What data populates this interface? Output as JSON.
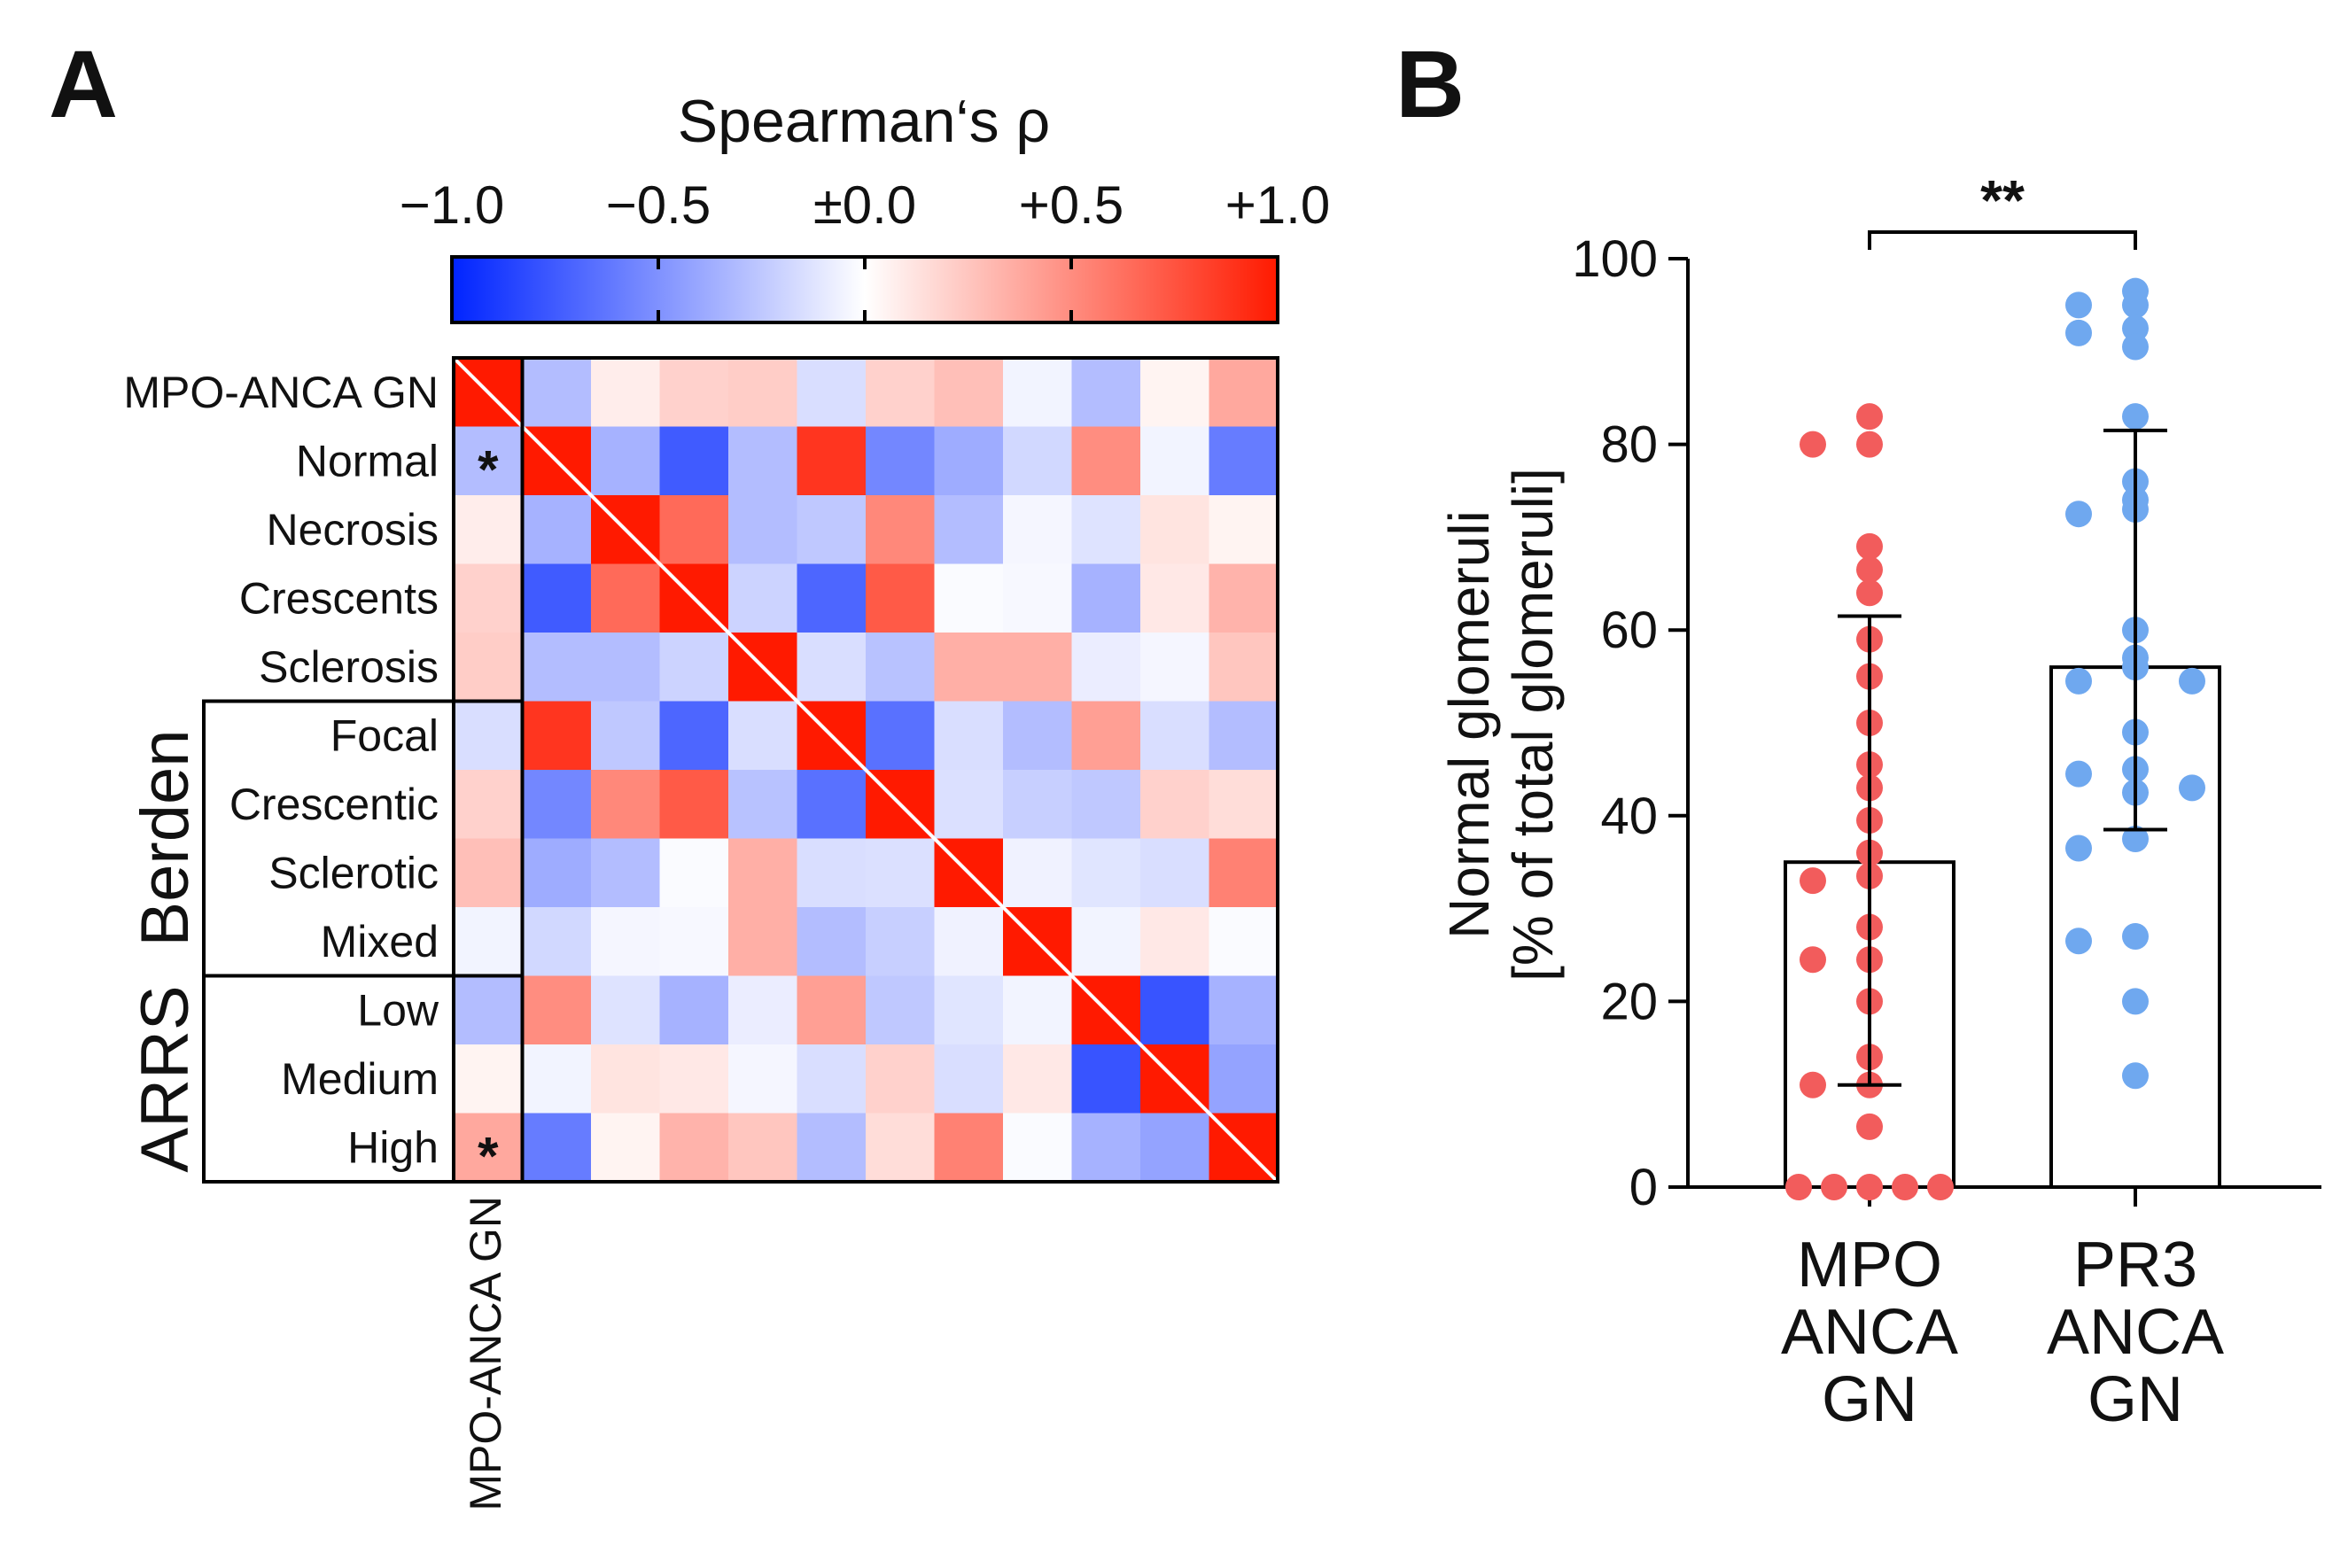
{
  "chart_data": [
    {
      "panel": "A",
      "type": "heatmap",
      "colorbar": {
        "title": "Spearman‘s ρ",
        "ticks": [
          "−1.0",
          "−0.5",
          "±0.0",
          "+0.5",
          "+1.0"
        ],
        "range": [
          -1.0,
          1.0
        ],
        "low_color": "#0024ff",
        "mid_color": "#ffffff",
        "high_color": "#ff1a00"
      },
      "row_labels": [
        "MPO-ANCA GN",
        "Normal",
        "Necrosis",
        "Crescents",
        "Sclerosis",
        "Focal",
        "Crescentic",
        "Sclerotic",
        "Mixed",
        "Low",
        "Medium",
        "High"
      ],
      "column_label": "MPO-ANCA GN",
      "groups": [
        {
          "name": "Berden",
          "rows": [
            "Focal",
            "Crescentic",
            "Sclerotic",
            "Mixed"
          ]
        },
        {
          "name": "ARRS",
          "rows": [
            "Low",
            "Medium",
            "High"
          ]
        }
      ],
      "significance_marks": [
        {
          "row": "Normal",
          "column": "MPO-ANCA GN",
          "text": "*"
        },
        {
          "row": "High",
          "column": "MPO-ANCA GN",
          "text": "*"
        }
      ],
      "values": [
        [
          1.0,
          -0.3,
          0.08,
          0.2,
          0.22,
          -0.15,
          0.2,
          0.28,
          -0.05,
          -0.3,
          0.05,
          0.38
        ],
        [
          -0.3,
          1.0,
          -0.35,
          -0.75,
          -0.3,
          0.88,
          -0.55,
          -0.38,
          -0.18,
          0.5,
          -0.05,
          -0.6
        ],
        [
          0.08,
          -0.35,
          1.0,
          0.65,
          -0.3,
          -0.25,
          0.52,
          -0.3,
          -0.04,
          -0.13,
          0.12,
          0.05
        ],
        [
          0.2,
          -0.75,
          0.65,
          1.0,
          -0.2,
          -0.7,
          0.72,
          -0.02,
          -0.03,
          -0.35,
          0.1,
          0.33
        ],
        [
          0.22,
          -0.3,
          -0.3,
          -0.2,
          1.0,
          -0.15,
          -0.28,
          0.35,
          0.35,
          -0.08,
          -0.04,
          0.25
        ],
        [
          -0.15,
          0.88,
          -0.25,
          -0.7,
          -0.15,
          1.0,
          -0.65,
          -0.15,
          -0.3,
          0.42,
          -0.15,
          -0.3
        ],
        [
          0.2,
          -0.55,
          0.52,
          0.72,
          -0.28,
          -0.65,
          1.0,
          -0.14,
          -0.22,
          -0.25,
          0.2,
          0.15
        ],
        [
          0.28,
          -0.38,
          -0.3,
          -0.02,
          0.35,
          -0.15,
          -0.14,
          1.0,
          -0.06,
          -0.12,
          -0.15,
          0.55
        ],
        [
          -0.05,
          -0.18,
          -0.04,
          -0.03,
          0.35,
          -0.3,
          -0.22,
          -0.06,
          1.0,
          -0.05,
          0.1,
          -0.02
        ],
        [
          -0.3,
          0.5,
          -0.13,
          -0.35,
          -0.08,
          0.42,
          -0.25,
          -0.12,
          -0.05,
          1.0,
          -0.78,
          -0.35
        ],
        [
          0.05,
          -0.05,
          0.12,
          0.1,
          -0.04,
          -0.15,
          0.2,
          -0.15,
          0.1,
          -0.78,
          1.0,
          -0.42
        ],
        [
          0.38,
          -0.6,
          0.05,
          0.33,
          0.25,
          -0.3,
          0.15,
          0.55,
          -0.02,
          -0.35,
          -0.42,
          1.0
        ]
      ]
    },
    {
      "panel": "B",
      "type": "bar",
      "categories": [
        "MPO ANCA GN",
        "PR3 ANCA GN"
      ],
      "category_lines": [
        [
          "MPO",
          "ANCA",
          "GN"
        ],
        [
          "PR3",
          "ANCA",
          "GN"
        ]
      ],
      "ylabel_lines": [
        "Normal glomeruli",
        "[% of total glomeruli]"
      ],
      "ylim": [
        0,
        100
      ],
      "yticks": [
        "0",
        "20",
        "40",
        "60",
        "80",
        "100"
      ],
      "bar_values": [
        35,
        56
      ],
      "error_bars": [
        [
          11,
          61.5
        ],
        [
          38.5,
          81.5
        ]
      ],
      "significance": "**",
      "series_colors": [
        "#f25c5c",
        "#6fa8ef"
      ],
      "points": [
        {
          "group": 0,
          "values": [
            83,
            80,
            80,
            69,
            66.5,
            64,
            59,
            55,
            50,
            45.5,
            43,
            39.5,
            36,
            33.5,
            33,
            28,
            24.5,
            24.5,
            20,
            14,
            11,
            11,
            6.5,
            0,
            0,
            0,
            0,
            0
          ]
        },
        {
          "group": 1,
          "values": [
            96.5,
            95,
            95,
            92.5,
            92,
            90.5,
            83,
            76,
            74,
            73,
            72.5,
            60,
            57,
            56,
            54.5,
            54.5,
            49,
            45,
            44.5,
            43,
            42.5,
            37.5,
            36.5,
            27,
            26.5,
            20,
            12
          ]
        }
      ]
    }
  ]
}
